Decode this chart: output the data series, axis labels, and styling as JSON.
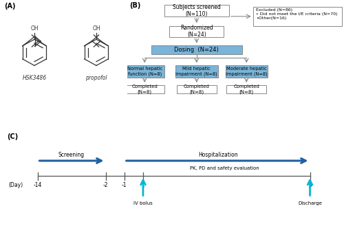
{
  "fig_width": 5.0,
  "fig_height": 3.29,
  "dpi": 100,
  "background": "#ffffff",
  "panel_A_label": "(A)",
  "panel_B_label": "(B)",
  "panel_C_label": "(C)",
  "hsk_label": "HSK3486",
  "propofol_label": "propofol",
  "box_color_blue": "#7ab4d8",
  "box_color_white": "#ffffff",
  "box_edge": "#888888",
  "dark_col": "#333333",
  "blue_arrow_color": "#2060a0",
  "cyan_arrow_color": "#00b8d4",
  "flowchart_nodes": {
    "screened": "Subjects screened\n(N=110)",
    "randomized": "Randomized\n(N=24)",
    "dosing": "Dosing  (N=24)",
    "excluded": "Excluded (N=86)\n• Did not meet the I/E criteria (N=70)\n•Other(N=16)",
    "normal": "Normal hepatic\nfunction (N=8)",
    "mild": "Mild hepatic\nimpairment (N=8)",
    "moderate": "Moderate hepatic\nimpairment (N=8)",
    "completed1": "Completed\n(N=8)",
    "completed2": "Completed\n(N=8)",
    "completed3": "Completed\n(N=8)"
  },
  "timeline": {
    "screening_label": "Screening",
    "hosp_label": "Hospitalization",
    "pk_label": "PK, PD and safety evaluation",
    "iv_label": "IV bolus",
    "discharge_label": "Discharge",
    "day_label": "(Day)"
  }
}
